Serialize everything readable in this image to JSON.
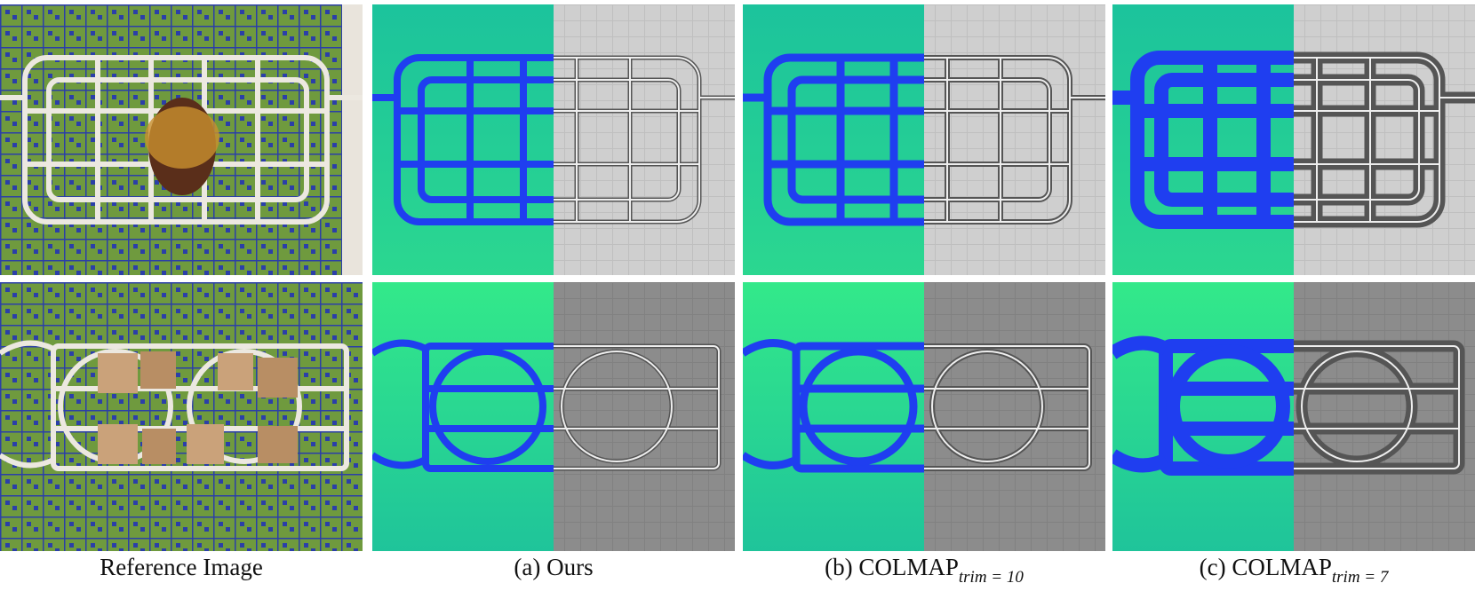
{
  "figure": {
    "columns": [
      {
        "caption": "Reference Image"
      },
      {
        "caption": "(a) Ours"
      },
      {
        "caption": "(b) COLMAP",
        "subscript": "trim = 10"
      },
      {
        "caption": "(c) COLMAP",
        "subscript": "trim = 7"
      }
    ]
  }
}
